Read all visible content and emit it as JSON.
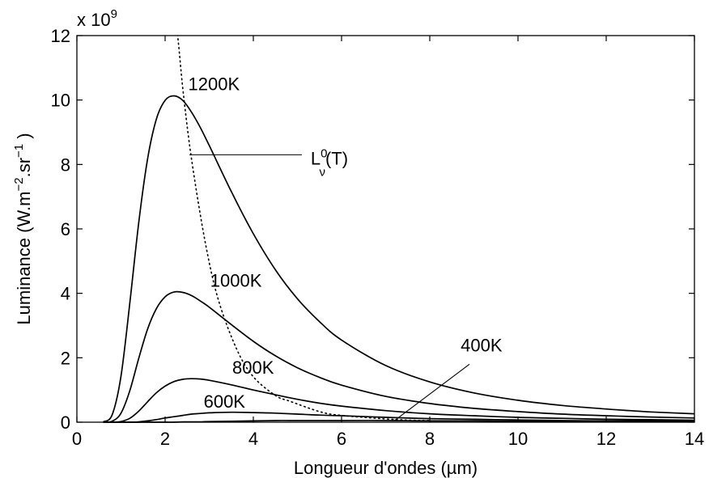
{
  "chart_data": {
    "type": "line",
    "xlabel": "Longueur d'ondes (µm)",
    "ylabel_parts": [
      "Luminance (W.m",
      "−2",
      ".sr",
      "−1",
      " )"
    ],
    "ylabel_full": "Luminance (W.m−2.sr−1 )",
    "y_multiplier_base": "x 10",
    "y_multiplier_exp": "9",
    "xlim": [
      0,
      14
    ],
    "ylim": [
      0,
      12
    ],
    "x_ticks": [
      0,
      2,
      4,
      6,
      8,
      10,
      12,
      14
    ],
    "y_ticks": [
      0,
      2,
      4,
      6,
      8,
      10,
      12
    ],
    "grid": false,
    "x": [
      0.6,
      0.8,
      1.0,
      1.2,
      1.4,
      1.6,
      1.8,
      2.0,
      2.2,
      2.4,
      2.6,
      2.8,
      3.0,
      3.5,
      4.0,
      4.5,
      5.0,
      5.5,
      6.0,
      7.0,
      8.0,
      9.0,
      10.0,
      11.0,
      12.0,
      13.0,
      14.0
    ],
    "series": [
      {
        "name": "1200K",
        "values": [
          0.01,
          0.23,
          1.43,
          3.7,
          6.17,
          8.15,
          9.4,
          9.99,
          10.13,
          9.99,
          9.62,
          9.14,
          8.59,
          7.16,
          5.85,
          4.73,
          3.83,
          3.12,
          2.55,
          1.76,
          1.25,
          0.91,
          0.68,
          0.52,
          0.41,
          0.32,
          0.26
        ]
      },
      {
        "name": "1000K",
        "values": [
          0.0,
          0.03,
          0.28,
          0.98,
          1.97,
          2.88,
          3.52,
          3.89,
          4.04,
          4.03,
          3.93,
          3.76,
          3.57,
          3.03,
          2.51,
          2.06,
          1.69,
          1.39,
          1.15,
          0.8,
          0.58,
          0.43,
          0.33,
          0.25,
          0.2,
          0.16,
          0.13
        ]
      },
      {
        "name": "800K",
        "values": [
          0.0,
          0.0,
          0.02,
          0.12,
          0.34,
          0.63,
          0.91,
          1.12,
          1.26,
          1.33,
          1.35,
          1.34,
          1.3,
          1.16,
          1.0,
          0.85,
          0.71,
          0.59,
          0.5,
          0.36,
          0.26,
          0.2,
          0.15,
          0.12,
          0.09,
          0.08,
          0.06
        ]
      },
      {
        "name": "600K",
        "values": [
          0.0,
          0.0,
          0.0,
          0.0,
          0.01,
          0.04,
          0.08,
          0.13,
          0.17,
          0.21,
          0.25,
          0.27,
          0.29,
          0.31,
          0.3,
          0.28,
          0.25,
          0.22,
          0.2,
          0.15,
          0.11,
          0.09,
          0.07,
          0.05,
          0.04,
          0.04,
          0.03
        ]
      },
      {
        "name": "400K",
        "values": [
          0.0,
          0.0,
          0.0,
          0.0,
          0.0,
          0.0,
          0.0,
          0.0,
          0.0,
          0.01,
          0.01,
          0.01,
          0.02,
          0.03,
          0.04,
          0.05,
          0.05,
          0.05,
          0.05,
          0.05,
          0.04,
          0.04,
          0.03,
          0.03,
          0.02,
          0.02,
          0.02
        ]
      }
    ],
    "peak_locus": {
      "style": "dotted",
      "label_base": "L",
      "label_sup": "0",
      "label_sub": "ν",
      "label_tail": "(T)",
      "x": [
        2.2,
        2.3,
        2.414,
        2.6,
        2.898,
        3.2,
        3.622,
        4.0,
        4.5,
        4.829,
        5.5,
        6.0,
        7.244,
        8.0
      ],
      "values": [
        13.0,
        11.8,
        10.19,
        8.16,
        5.67,
        3.83,
        2.27,
        1.41,
        0.83,
        0.65,
        0.33,
        0.21,
        0.08,
        0.05
      ]
    },
    "annotations": [
      {
        "text": "1200K",
        "at_x": 2.45,
        "at_y": 10.2
      },
      {
        "text": "1000K",
        "at_x": 2.95,
        "at_y": 4.1
      },
      {
        "text": "800K",
        "at_x": 3.45,
        "at_y": 1.4
      },
      {
        "text": "600K",
        "at_x": 2.8,
        "at_y": 0.35
      }
    ]
  }
}
